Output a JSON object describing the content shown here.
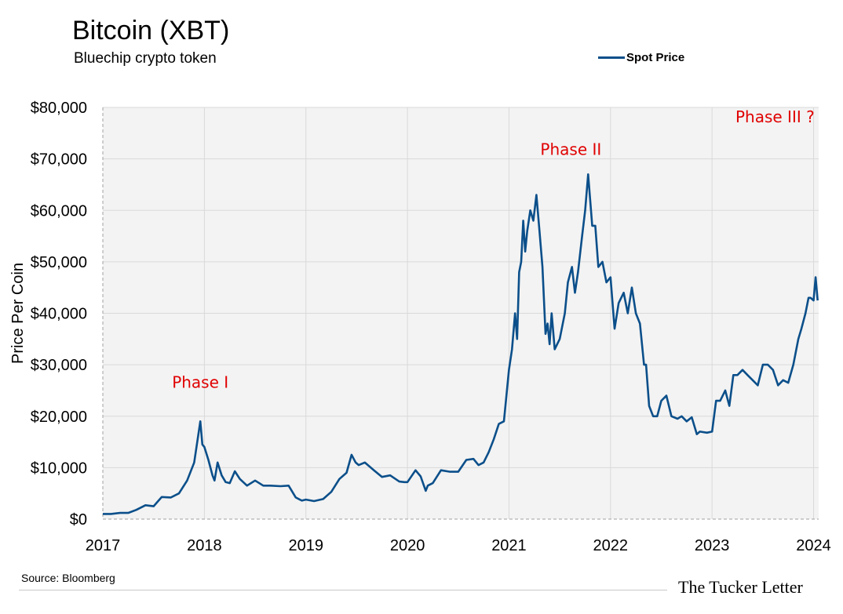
{
  "header": {
    "title": "Bitcoin (XBT)",
    "subtitle": "Bluechip crypto token"
  },
  "legend": {
    "label": "Spot Price",
    "color": "#0b4f8a"
  },
  "footer": {
    "source": "Source: Bloomberg",
    "brand": "The Tucker Letter"
  },
  "chart_data": {
    "type": "line",
    "ylabel": "Price Per Coin",
    "xlim": [
      2017,
      2024.05
    ],
    "ylim": [
      0,
      80000
    ],
    "grid": true,
    "legend_position": "top-right",
    "y_ticks": [
      0,
      10000,
      20000,
      30000,
      40000,
      50000,
      60000,
      70000,
      80000
    ],
    "y_tick_labels": [
      "$0",
      "$10,000",
      "$20,000",
      "$30,000",
      "$40,000",
      "$50,000",
      "$60,000",
      "$70,000",
      "$80,000"
    ],
    "x_ticks": [
      2017,
      2018,
      2019,
      2020,
      2021,
      2022,
      2023,
      2024
    ],
    "x_tick_labels": [
      "2017",
      "2018",
      "2019",
      "2020",
      "2021",
      "2022",
      "2023",
      "2024"
    ],
    "annotations": [
      {
        "text": "Phase I",
        "x": 2017.96,
        "y": 25500
      },
      {
        "text": "Phase II",
        "x": 2021.61,
        "y": 70800
      },
      {
        "text": "Phase III ?",
        "x": 2023.62,
        "y": 77100
      }
    ],
    "series": [
      {
        "name": "Spot Price",
        "color": "#0b4f8a",
        "x": [
          2017.0,
          2017.08,
          2017.17,
          2017.25,
          2017.33,
          2017.42,
          2017.5,
          2017.58,
          2017.67,
          2017.75,
          2017.83,
          2017.9,
          2017.96,
          2017.98,
          2018.0,
          2018.04,
          2018.08,
          2018.1,
          2018.13,
          2018.17,
          2018.21,
          2018.25,
          2018.3,
          2018.35,
          2018.42,
          2018.5,
          2018.58,
          2018.65,
          2018.75,
          2018.83,
          2018.9,
          2018.96,
          2019.0,
          2019.08,
          2019.17,
          2019.25,
          2019.33,
          2019.4,
          2019.45,
          2019.49,
          2019.52,
          2019.58,
          2019.67,
          2019.75,
          2019.83,
          2019.92,
          2019.97,
          2020.0,
          2020.08,
          2020.13,
          2020.18,
          2020.2,
          2020.25,
          2020.33,
          2020.42,
          2020.5,
          2020.58,
          2020.65,
          2020.7,
          2020.75,
          2020.8,
          2020.85,
          2020.9,
          2020.95,
          2021.0,
          2021.03,
          2021.06,
          2021.08,
          2021.1,
          2021.12,
          2021.14,
          2021.16,
          2021.18,
          2021.21,
          2021.24,
          2021.27,
          2021.3,
          2021.33,
          2021.36,
          2021.38,
          2021.4,
          2021.42,
          2021.45,
          2021.5,
          2021.55,
          2021.58,
          2021.62,
          2021.65,
          2021.68,
          2021.72,
          2021.75,
          2021.78,
          2021.82,
          2021.85,
          2021.88,
          2021.92,
          2021.96,
          2022.0,
          2022.04,
          2022.08,
          2022.13,
          2022.17,
          2022.21,
          2022.25,
          2022.29,
          2022.33,
          2022.35,
          2022.38,
          2022.42,
          2022.46,
          2022.5,
          2022.55,
          2022.6,
          2022.66,
          2022.7,
          2022.75,
          2022.8,
          2022.85,
          2022.88,
          2022.95,
          2023.0,
          2023.04,
          2023.08,
          2023.13,
          2023.17,
          2023.21,
          2023.25,
          2023.3,
          2023.35,
          2023.4,
          2023.45,
          2023.5,
          2023.55,
          2023.6,
          2023.65,
          2023.7,
          2023.75,
          2023.8,
          2023.85,
          2023.88,
          2023.92,
          2023.95,
          2023.97,
          2024.0,
          2024.02,
          2024.04
        ],
        "y": [
          1000,
          1000,
          1200,
          1200,
          1800,
          2700,
          2500,
          4300,
          4200,
          5000,
          7500,
          11000,
          19000,
          14500,
          14000,
          11500,
          8500,
          7500,
          11000,
          8500,
          7200,
          7000,
          9300,
          7800,
          6500,
          7500,
          6500,
          6500,
          6400,
          6500,
          4200,
          3600,
          3800,
          3500,
          3900,
          5300,
          7800,
          9000,
          12500,
          11000,
          10500,
          11000,
          9500,
          8200,
          8500,
          7300,
          7200,
          7200,
          9500,
          8300,
          5500,
          6500,
          7000,
          9500,
          9200,
          9200,
          11500,
          11700,
          10500,
          11000,
          13000,
          15500,
          18500,
          19000,
          29000,
          33000,
          40000,
          35000,
          48000,
          50000,
          58000,
          52000,
          56000,
          60000,
          58000,
          63000,
          56000,
          49000,
          36000,
          38000,
          34000,
          40000,
          33000,
          35000,
          40000,
          46000,
          49000,
          44000,
          48000,
          55000,
          60000,
          67000,
          57000,
          57000,
          49000,
          50000,
          46000,
          47000,
          37000,
          42000,
          44000,
          40000,
          45000,
          40000,
          38000,
          30000,
          30000,
          22000,
          20000,
          20000,
          23000,
          24000,
          20000,
          19500,
          20000,
          19000,
          19800,
          16500,
          17000,
          16800,
          17000,
          23000,
          23000,
          25000,
          22000,
          28000,
          28000,
          29000,
          28000,
          27000,
          26000,
          30000,
          30000,
          29000,
          26000,
          27000,
          26500,
          30000,
          35000,
          37000,
          40000,
          43000,
          43000,
          42500,
          47000,
          42500
        ]
      }
    ]
  }
}
